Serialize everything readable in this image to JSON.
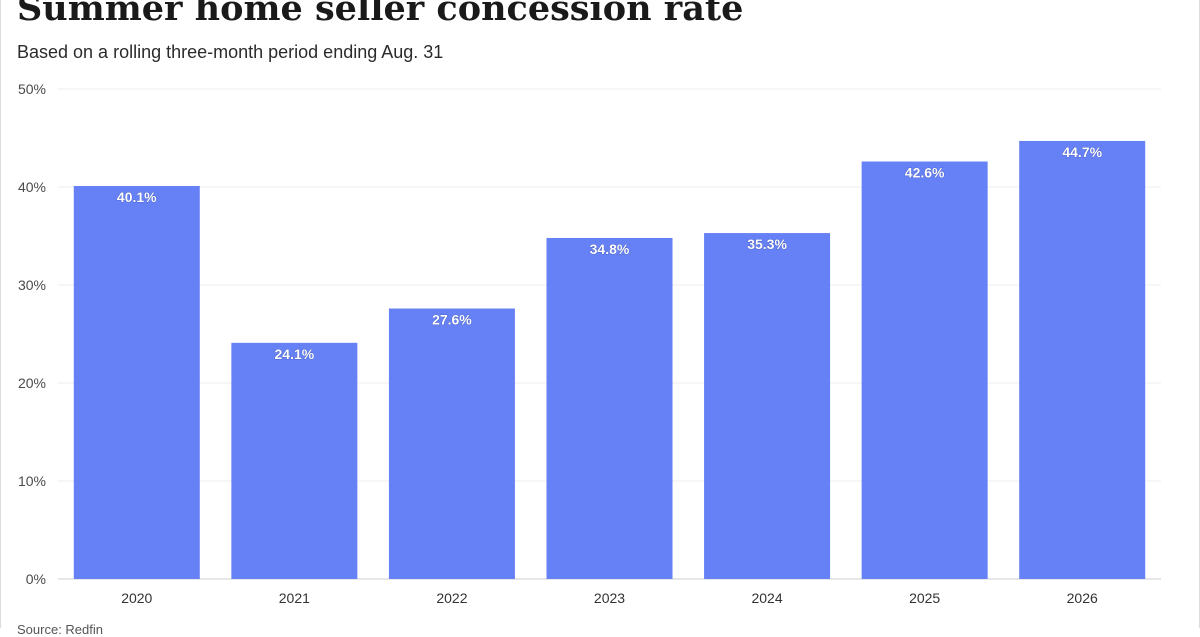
{
  "title": "Summer home seller concession rate",
  "subtitle": "Based on a rolling three-month period ending Aug. 31",
  "source": "Source: Redfin",
  "colors": {
    "bar": "#6680f5",
    "bar_label": "#ffffff",
    "grid": "#ececec",
    "axis_text": "#4a4a4a"
  },
  "chart_data": {
    "type": "bar",
    "categories": [
      "2020",
      "2021",
      "2022",
      "2023",
      "2024",
      "2025",
      "2026"
    ],
    "values": [
      40.1,
      24.1,
      27.6,
      34.8,
      35.3,
      42.6,
      44.7
    ],
    "data_labels": [
      "40.1%",
      "24.1%",
      "27.6%",
      "34.8%",
      "35.3%",
      "42.6%",
      "44.7%"
    ],
    "y_ticks": [
      0,
      10,
      20,
      30,
      40,
      50
    ],
    "y_tick_labels": [
      "0%",
      "10%",
      "20%",
      "30%",
      "40%",
      "50%"
    ],
    "ylim": [
      0,
      50
    ],
    "grid": true,
    "xlabel": "",
    "ylabel": ""
  }
}
